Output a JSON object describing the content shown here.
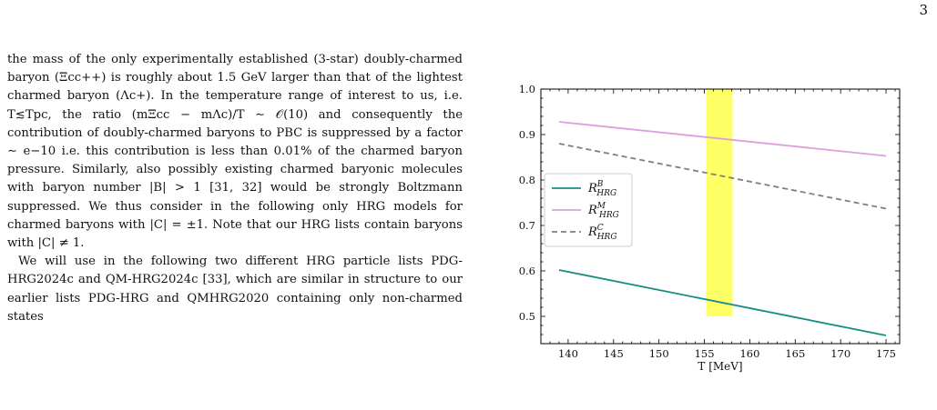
{
  "page_number": "3",
  "paragraphs": [
    "the mass of the only experimentally established (3-star) doubly-charmed baryon (Ξcc++) is roughly about 1.5 GeV larger than that of the lightest charmed baryon (Λc+). In the temperature range of interest to us, i.e. T≲Tpc, the ratio (mΞcc − mΛc)/T ∼ 𝒪(10) and consequently the contribution of doubly-charmed baryons to PBC is suppressed by a factor ∼ e−10 i.e. this contribution is less than 0.01% of the charmed baryon pressure. Similarly, also possibly existing charmed baryonic molecules with baryon number |B| > 1 [31, 32] would be strongly Boltzmann suppressed. We thus consider in the following only HRG models for charmed baryons with |C| = ±1. Note that our HRG lists contain baryons with |C| ≠ 1.",
    "We will use in the following two different HRG particle lists PDG-HRG2024c and QM-HRG2024c [33], which are similar in structure to our earlier lists PDG-HRG and QMHRG2020 containing only non-charmed states"
  ],
  "chart_data": {
    "type": "line",
    "xlabel": "T [MeV]",
    "ylabel": "",
    "xlim": [
      137,
      176.5
    ],
    "ylim": [
      0.44,
      1.0
    ],
    "x_ticks": [
      "140",
      "145",
      "150",
      "155",
      "160",
      "165",
      "170",
      "175"
    ],
    "y_ticks": [
      "0.5",
      "0.6",
      "0.7",
      "0.8",
      "0.9",
      "1.0"
    ],
    "band": {
      "x_from": 155.2,
      "x_to": 158.1,
      "y_from": 0.5,
      "y_to": 1.0,
      "color": "#ffff66"
    },
    "legend_position": "center-left",
    "series": [
      {
        "name": "R",
        "sup": "B",
        "sub": "HRG",
        "color": "#178c82",
        "dash": "",
        "x": [
          139,
          175
        ],
        "y": [
          0.602,
          0.458
        ]
      },
      {
        "name": "R",
        "sup": "M",
        "sub": "HRG",
        "color": "#dda0dd",
        "dash": "",
        "x": [
          139,
          175
        ],
        "y": [
          0.928,
          0.853
        ]
      },
      {
        "name": "R",
        "sup": "C",
        "sub": "HRG",
        "color": "#7f7f7f",
        "dash": "6,4",
        "x": [
          139,
          175
        ],
        "y": [
          0.88,
          0.737
        ]
      }
    ]
  }
}
